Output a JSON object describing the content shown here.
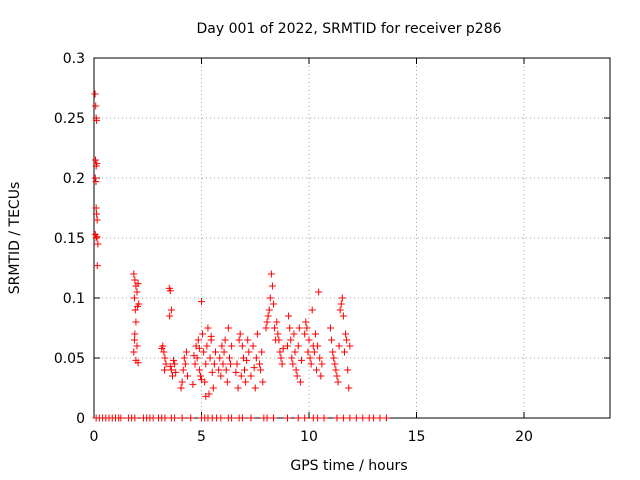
{
  "chart_data": {
    "type": "scatter",
    "title": "Day 001 of 2022, SRMTID for receiver p286",
    "xlabel": "GPS time / hours",
    "ylabel": "SRMTID / TECUs",
    "xlim": [
      0,
      24
    ],
    "ylim": [
      0,
      0.3
    ],
    "xticks": [
      0,
      5,
      10,
      15,
      20
    ],
    "xtick_labels": [
      "0",
      "5",
      "10",
      "15",
      "20"
    ],
    "yticks": [
      0,
      0.05,
      0.1,
      0.15,
      0.2,
      0.25,
      0.3
    ],
    "ytick_labels": [
      "0",
      "0.05",
      "0.1",
      "0.15",
      "0.2",
      "0.25",
      "0.3"
    ],
    "grid": true,
    "marker": "+",
    "color": "#ff0000",
    "series": [
      {
        "name": "SRMTID",
        "points": [
          [
            0.05,
            0.27
          ],
          [
            0.08,
            0.26
          ],
          [
            0.1,
            0.25
          ],
          [
            0.12,
            0.248
          ],
          [
            0.07,
            0.215
          ],
          [
            0.1,
            0.21
          ],
          [
            0.13,
            0.212
          ],
          [
            0.06,
            0.2
          ],
          [
            0.09,
            0.197
          ],
          [
            0.1,
            0.175
          ],
          [
            0.12,
            0.17
          ],
          [
            0.15,
            0.165
          ],
          [
            0.06,
            0.153
          ],
          [
            0.1,
            0.15
          ],
          [
            0.14,
            0.151
          ],
          [
            0.18,
            0.145
          ],
          [
            0.15,
            0.127
          ],
          [
            1.85,
            0.12
          ],
          [
            1.9,
            0.115
          ],
          [
            1.95,
            0.11
          ],
          [
            2.0,
            0.105
          ],
          [
            2.05,
            0.112
          ],
          [
            1.88,
            0.1
          ],
          [
            2.02,
            0.093
          ],
          [
            1.92,
            0.09
          ],
          [
            2.08,
            0.095
          ],
          [
            1.95,
            0.08
          ],
          [
            1.9,
            0.07
          ],
          [
            2.0,
            0.06
          ],
          [
            1.85,
            0.055
          ],
          [
            1.95,
            0.048
          ],
          [
            2.05,
            0.046
          ],
          [
            1.88,
            0.065
          ],
          [
            3.2,
            0.06
          ],
          [
            3.25,
            0.055
          ],
          [
            3.3,
            0.05
          ],
          [
            3.35,
            0.045
          ],
          [
            3.28,
            0.04
          ],
          [
            3.15,
            0.058
          ],
          [
            3.5,
            0.108
          ],
          [
            3.55,
            0.106
          ],
          [
            3.6,
            0.09
          ],
          [
            3.52,
            0.085
          ],
          [
            3.7,
            0.048
          ],
          [
            3.75,
            0.045
          ],
          [
            3.6,
            0.04
          ],
          [
            3.8,
            0.038
          ],
          [
            3.65,
            0.035
          ],
          [
            3.55,
            0.043
          ],
          [
            4.1,
            0.03
          ],
          [
            4.15,
            0.04
          ],
          [
            4.2,
            0.05
          ],
          [
            4.25,
            0.045
          ],
          [
            4.3,
            0.055
          ],
          [
            4.05,
            0.025
          ],
          [
            4.35,
            0.035
          ],
          [
            4.6,
            0.028
          ],
          [
            4.7,
            0.045
          ],
          [
            4.75,
            0.06
          ],
          [
            4.8,
            0.05
          ],
          [
            4.85,
            0.065
          ],
          [
            4.9,
            0.04
          ],
          [
            4.95,
            0.035
          ],
          [
            5.0,
            0.097
          ],
          [
            5.05,
            0.07
          ],
          [
            5.1,
            0.055
          ],
          [
            5.15,
            0.03
          ],
          [
            5.2,
            0.045
          ],
          [
            5.25,
            0.06
          ],
          [
            5.3,
            0.075
          ],
          [
            5.35,
            0.02
          ],
          [
            5.4,
            0.05
          ],
          [
            5.45,
            0.065
          ],
          [
            5.5,
            0.038
          ],
          [
            5.55,
            0.025
          ],
          [
            5.6,
            0.045
          ],
          [
            5.65,
            0.055
          ],
          [
            5.0,
            0.032
          ],
          [
            4.9,
            0.058
          ],
          [
            5.2,
            0.018
          ],
          [
            5.45,
            0.068
          ],
          [
            4.65,
            0.052
          ],
          [
            5.8,
            0.04
          ],
          [
            5.85,
            0.05
          ],
          [
            5.9,
            0.035
          ],
          [
            5.95,
            0.06
          ],
          [
            6.0,
            0.045
          ],
          [
            6.05,
            0.055
          ],
          [
            6.1,
            0.065
          ],
          [
            6.15,
            0.04
          ],
          [
            6.2,
            0.03
          ],
          [
            6.25,
            0.075
          ],
          [
            6.3,
            0.05
          ],
          [
            6.35,
            0.045
          ],
          [
            6.4,
            0.06
          ],
          [
            6.6,
            0.038
          ],
          [
            6.65,
            0.045
          ],
          [
            6.7,
            0.025
          ],
          [
            6.75,
            0.065
          ],
          [
            6.8,
            0.07
          ],
          [
            6.85,
            0.035
          ],
          [
            6.9,
            0.06
          ],
          [
            6.95,
            0.05
          ],
          [
            7.0,
            0.04
          ],
          [
            7.05,
            0.03
          ],
          [
            7.1,
            0.048
          ],
          [
            7.15,
            0.065
          ],
          [
            7.2,
            0.055
          ],
          [
            7.3,
            0.035
          ],
          [
            7.4,
            0.06
          ],
          [
            7.45,
            0.042
          ],
          [
            7.5,
            0.025
          ],
          [
            7.55,
            0.05
          ],
          [
            7.6,
            0.07
          ],
          [
            7.7,
            0.045
          ],
          [
            7.75,
            0.04
          ],
          [
            7.8,
            0.055
          ],
          [
            7.85,
            0.03
          ],
          [
            8.0,
            0.075
          ],
          [
            8.05,
            0.08
          ],
          [
            8.1,
            0.085
          ],
          [
            8.15,
            0.09
          ],
          [
            8.2,
            0.1
          ],
          [
            8.25,
            0.12
          ],
          [
            8.3,
            0.11
          ],
          [
            8.35,
            0.095
          ],
          [
            8.4,
            0.075
          ],
          [
            8.45,
            0.065
          ],
          [
            8.5,
            0.08
          ],
          [
            8.55,
            0.07
          ],
          [
            8.6,
            0.065
          ],
          [
            8.65,
            0.055
          ],
          [
            8.7,
            0.05
          ],
          [
            8.75,
            0.045
          ],
          [
            8.8,
            0.058
          ],
          [
            9.0,
            0.06
          ],
          [
            9.05,
            0.085
          ],
          [
            9.1,
            0.075
          ],
          [
            9.15,
            0.065
          ],
          [
            9.2,
            0.05
          ],
          [
            9.25,
            0.045
          ],
          [
            9.3,
            0.07
          ],
          [
            9.35,
            0.055
          ],
          [
            9.4,
            0.04
          ],
          [
            9.45,
            0.035
          ],
          [
            9.5,
            0.06
          ],
          [
            9.55,
            0.075
          ],
          [
            9.6,
            0.03
          ],
          [
            9.65,
            0.048
          ],
          [
            9.8,
            0.07
          ],
          [
            9.85,
            0.08
          ],
          [
            9.9,
            0.075
          ],
          [
            9.95,
            0.055
          ],
          [
            10.0,
            0.065
          ],
          [
            10.05,
            0.05
          ],
          [
            10.1,
            0.045
          ],
          [
            10.15,
            0.09
          ],
          [
            10.2,
            0.06
          ],
          [
            10.25,
            0.055
          ],
          [
            10.3,
            0.07
          ],
          [
            10.35,
            0.04
          ],
          [
            10.4,
            0.06
          ],
          [
            10.45,
            0.105
          ],
          [
            10.5,
            0.05
          ],
          [
            10.55,
            0.035
          ],
          [
            10.6,
            0.045
          ],
          [
            11.0,
            0.075
          ],
          [
            11.05,
            0.065
          ],
          [
            11.1,
            0.055
          ],
          [
            11.15,
            0.05
          ],
          [
            11.2,
            0.045
          ],
          [
            11.25,
            0.04
          ],
          [
            11.3,
            0.035
          ],
          [
            11.35,
            0.03
          ],
          [
            11.4,
            0.06
          ],
          [
            11.45,
            0.09
          ],
          [
            11.5,
            0.095
          ],
          [
            11.55,
            0.1
          ],
          [
            11.6,
            0.085
          ],
          [
            11.65,
            0.055
          ],
          [
            11.7,
            0.07
          ],
          [
            11.75,
            0.065
          ],
          [
            11.8,
            0.04
          ],
          [
            11.85,
            0.025
          ],
          [
            11.9,
            0.06
          ],
          [
            0.1,
            0
          ],
          [
            0.25,
            0
          ],
          [
            0.4,
            0
          ],
          [
            0.55,
            0
          ],
          [
            0.7,
            0
          ],
          [
            0.85,
            0
          ],
          [
            1.0,
            0
          ],
          [
            1.15,
            0
          ],
          [
            1.25,
            0
          ],
          [
            1.6,
            0
          ],
          [
            1.75,
            0
          ],
          [
            1.9,
            0
          ],
          [
            2.3,
            0
          ],
          [
            2.45,
            0
          ],
          [
            2.6,
            0
          ],
          [
            2.75,
            0
          ],
          [
            3.0,
            0
          ],
          [
            3.15,
            0
          ],
          [
            3.3,
            0
          ],
          [
            3.6,
            0
          ],
          [
            3.75,
            0
          ],
          [
            4.1,
            0
          ],
          [
            4.5,
            0
          ],
          [
            5.0,
            0
          ],
          [
            5.15,
            0
          ],
          [
            5.3,
            0
          ],
          [
            5.5,
            0
          ],
          [
            5.7,
            0
          ],
          [
            5.9,
            0
          ],
          [
            6.25,
            0
          ],
          [
            6.4,
            0
          ],
          [
            6.75,
            0
          ],
          [
            6.9,
            0
          ],
          [
            7.3,
            0
          ],
          [
            7.9,
            0
          ],
          [
            8.05,
            0
          ],
          [
            8.35,
            0
          ],
          [
            9.0,
            0
          ],
          [
            9.5,
            0
          ],
          [
            9.8,
            0
          ],
          [
            10.2,
            0
          ],
          [
            10.4,
            0
          ],
          [
            10.7,
            0
          ],
          [
            11.3,
            0
          ],
          [
            11.6,
            0
          ],
          [
            11.9,
            0
          ],
          [
            12.2,
            0
          ],
          [
            12.5,
            0
          ],
          [
            12.8,
            0
          ],
          [
            13.0,
            0
          ],
          [
            13.3,
            0
          ],
          [
            13.6,
            0
          ]
        ]
      }
    ]
  }
}
